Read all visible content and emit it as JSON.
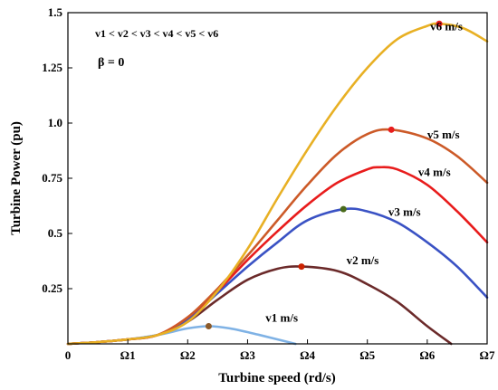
{
  "chart_data": {
    "type": "line",
    "title": "",
    "xlabel": "Turbine speed (rd/s)",
    "ylabel": "Turbine Power (pu)",
    "xlim": [
      0,
      7
    ],
    "ylim": [
      0,
      1.5
    ],
    "x_ticks": [
      {
        "value": 0,
        "label": "0"
      },
      {
        "value": 1,
        "label": "Ω1"
      },
      {
        "value": 2,
        "label": "Ω2"
      },
      {
        "value": 3,
        "label": "Ω3"
      },
      {
        "value": 4,
        "label": "Ω4"
      },
      {
        "value": 5,
        "label": "Ω5"
      },
      {
        "value": 6,
        "label": "Ω6"
      },
      {
        "value": 7,
        "label": "Ω7"
      }
    ],
    "y_ticks": [
      {
        "value": 0.25,
        "label": "0.25"
      },
      {
        "value": 0.5,
        "label": "0.5"
      },
      {
        "value": 0.75,
        "label": "0.75"
      },
      {
        "value": 1.0,
        "label": "1.0"
      },
      {
        "value": 1.25,
        "label": "1.25"
      },
      {
        "value": 1.5,
        "label": "1.5"
      }
    ],
    "grid": false,
    "legend": "none",
    "annotations": [
      {
        "text": "v1 < v2 < v3 < v4 < v5 < v6",
        "position": "top-left"
      },
      {
        "text": "β = 0",
        "position": "top-left"
      }
    ],
    "series": [
      {
        "name": "v1 m/s",
        "color": "#7fb2e5",
        "x": [
          0,
          0.5,
          1.0,
          1.5,
          2.0,
          2.35,
          2.7,
          3.2,
          3.8
        ],
        "y": [
          0,
          0.008,
          0.02,
          0.04,
          0.07,
          0.08,
          0.07,
          0.04,
          0.0
        ],
        "max_point": {
          "x": 2.35,
          "y": 0.08,
          "color": "#8b5a2b"
        }
      },
      {
        "name": "v2 m/s",
        "color": "#6b2a2a",
        "x": [
          0,
          0.5,
          1.0,
          1.5,
          2.0,
          2.5,
          3.0,
          3.5,
          3.9,
          4.5,
          5.0,
          5.5,
          6.0,
          6.4
        ],
        "y": [
          0,
          0.008,
          0.02,
          0.04,
          0.1,
          0.2,
          0.29,
          0.34,
          0.35,
          0.33,
          0.27,
          0.19,
          0.08,
          0.0
        ],
        "max_point": {
          "x": 3.9,
          "y": 0.35,
          "color": "#cc2200"
        }
      },
      {
        "name": "v3 m/s",
        "color": "#3a52c4",
        "x": [
          0,
          0.5,
          1.0,
          1.5,
          2.0,
          2.5,
          3.0,
          3.5,
          4.0,
          4.6,
          5.0,
          5.5,
          6.0,
          6.5,
          7.0
        ],
        "y": [
          0,
          0.008,
          0.02,
          0.04,
          0.11,
          0.23,
          0.35,
          0.46,
          0.56,
          0.61,
          0.6,
          0.55,
          0.46,
          0.35,
          0.21
        ],
        "max_point": {
          "x": 4.6,
          "y": 0.61,
          "color": "#4a6b1a"
        }
      },
      {
        "name": "v4 m/s",
        "color": "#e81c1c",
        "x": [
          0,
          0.5,
          1.0,
          1.5,
          2.0,
          2.5,
          3.0,
          3.5,
          4.0,
          4.5,
          5.0,
          5.2,
          5.5,
          6.0,
          6.5,
          7.0
        ],
        "y": [
          0,
          0.008,
          0.02,
          0.04,
          0.12,
          0.24,
          0.38,
          0.51,
          0.63,
          0.73,
          0.79,
          0.8,
          0.79,
          0.72,
          0.6,
          0.46
        ],
        "max_point": null
      },
      {
        "name": "v5 m/s",
        "color": "#cc5a28",
        "x": [
          0,
          0.5,
          1.0,
          1.5,
          2.0,
          2.5,
          3.0,
          3.5,
          4.0,
          4.5,
          5.0,
          5.4,
          6.0,
          6.5,
          7.0
        ],
        "y": [
          0,
          0.008,
          0.02,
          0.04,
          0.12,
          0.25,
          0.4,
          0.56,
          0.72,
          0.86,
          0.95,
          0.97,
          0.93,
          0.85,
          0.73
        ],
        "max_point": {
          "x": 5.4,
          "y": 0.97,
          "color": "#e81c1c"
        }
      },
      {
        "name": "v6 m/s",
        "color": "#e8b024",
        "x": [
          0,
          0.5,
          1.0,
          1.5,
          2.0,
          2.5,
          3.0,
          3.5,
          4.0,
          4.5,
          5.0,
          5.5,
          6.0,
          6.2,
          6.6,
          7.0
        ],
        "y": [
          0,
          0.008,
          0.02,
          0.04,
          0.1,
          0.24,
          0.43,
          0.66,
          0.88,
          1.08,
          1.25,
          1.38,
          1.44,
          1.45,
          1.43,
          1.37
        ],
        "max_point": {
          "x": 6.2,
          "y": 1.45,
          "color": "#e81c1c"
        }
      }
    ],
    "series_label_positions": [
      {
        "x": 3.3,
        "y": 0.1
      },
      {
        "x": 4.65,
        "y": 0.36
      },
      {
        "x": 5.35,
        "y": 0.58
      },
      {
        "x": 5.85,
        "y": 0.76
      },
      {
        "x": 6.0,
        "y": 0.93
      },
      {
        "x": 6.05,
        "y": 1.42
      }
    ]
  }
}
